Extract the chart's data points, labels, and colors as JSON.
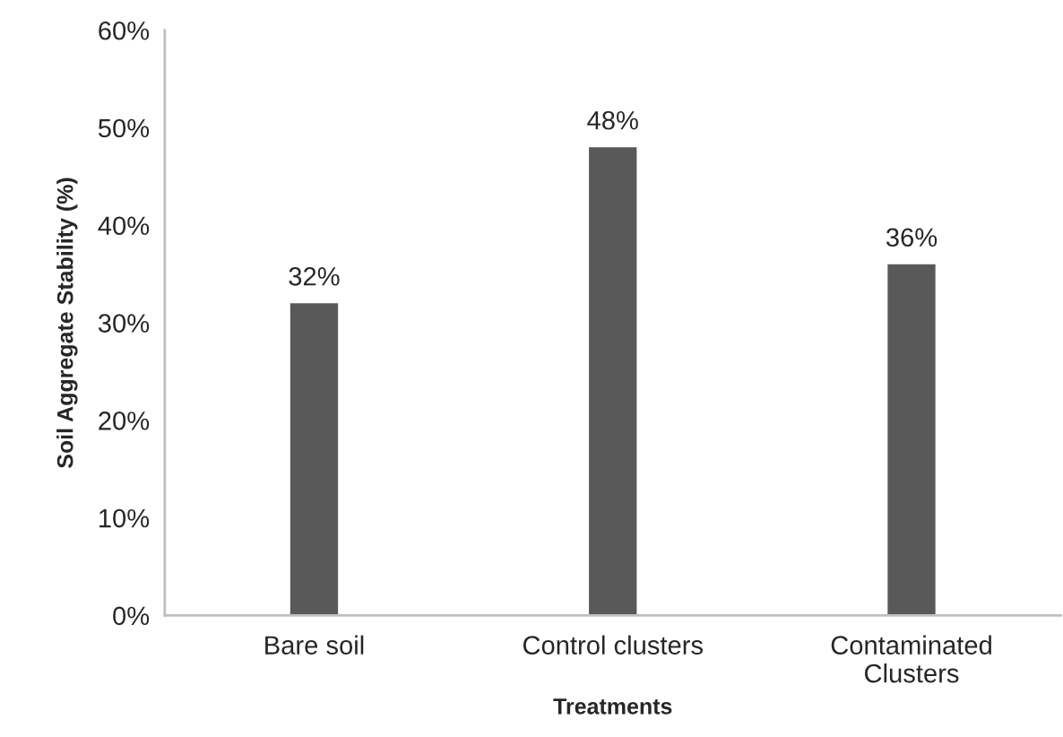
{
  "chart_data": {
    "type": "bar",
    "xlabel": "Treatments",
    "ylabel": "Soil Aggregate Stability (%)",
    "categories": [
      "Bare soil",
      "Control clusters",
      "Contaminated Clusters"
    ],
    "values": [
      32,
      48,
      36
    ],
    "color": "#595959",
    "value_labels": [
      "32%",
      "48%",
      "36%"
    ],
    "ylim": [
      0,
      60
    ],
    "yticks": [
      {
        "value": 0,
        "label": "0%"
      },
      {
        "value": 10,
        "label": "10%"
      },
      {
        "value": 20,
        "label": "20%"
      },
      {
        "value": 30,
        "label": "30%"
      },
      {
        "value": 40,
        "label": "40%"
      },
      {
        "value": 50,
        "label": "50%"
      },
      {
        "value": 60,
        "label": "60%"
      }
    ],
    "grid": false,
    "legend": false
  }
}
